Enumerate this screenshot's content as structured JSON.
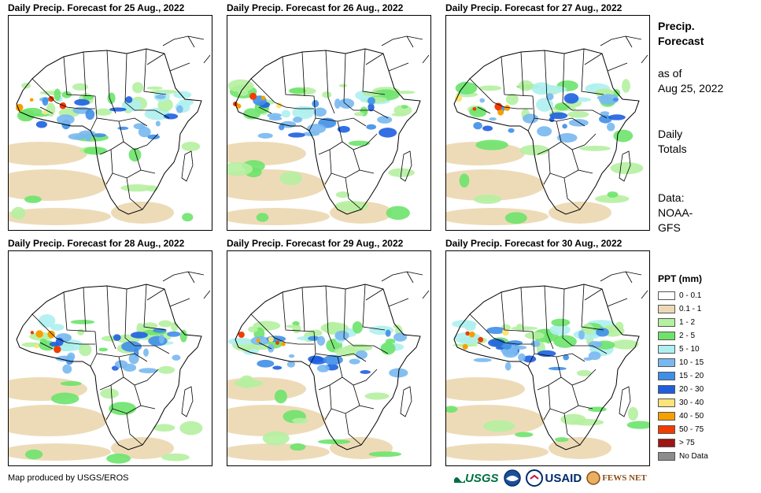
{
  "panels": [
    {
      "title": "Daily Precip. Forecast for 25 Aug., 2022"
    },
    {
      "title": "Daily Precip. Forecast for 26 Aug., 2022"
    },
    {
      "title": "Daily Precip. Forecast for 27 Aug., 2022"
    },
    {
      "title": "Daily Precip. Forecast for 28 Aug., 2022"
    },
    {
      "title": "Daily Precip. Forecast for 29 Aug., 2022"
    },
    {
      "title": "Daily Precip. Forecast for 30 Aug., 2022"
    }
  ],
  "sidebar": {
    "heading_line1": "Precip.",
    "heading_line2": "Forecast",
    "asof_line1": "as of",
    "asof_line2": "Aug 25, 2022",
    "daily_line1": "Daily",
    "daily_line2": "Totals",
    "data_line1": "Data:",
    "data_line2": "NOAA-",
    "data_line3": "GFS"
  },
  "legend": {
    "title": "PPT (mm)",
    "items": [
      {
        "label": "0 - 0.1",
        "color": "#ffffff"
      },
      {
        "label": "0.1 - 1",
        "color": "#ecd9b4"
      },
      {
        "label": "1 - 2",
        "color": "#b5f0a0"
      },
      {
        "label": "2 - 5",
        "color": "#6de36b"
      },
      {
        "label": "5 - 10",
        "color": "#aef0f0"
      },
      {
        "label": "10 - 15",
        "color": "#78b8f0"
      },
      {
        "label": "15 - 20",
        "color": "#3f8ee8"
      },
      {
        "label": "20 - 30",
        "color": "#1e5fe0"
      },
      {
        "label": "30 - 40",
        "color": "#fce478"
      },
      {
        "label": "40 - 50",
        "color": "#f5a000"
      },
      {
        "label": "50 - 75",
        "color": "#f03c00"
      },
      {
        "label": "> 75",
        "color": "#a01414"
      },
      {
        "label": "No Data",
        "color": "#8c8c8c"
      }
    ]
  },
  "credit": "Map produced by USGS/EROS",
  "logos": {
    "usgs": "USGS",
    "noaa": "NOAA",
    "usaid": "USAID",
    "fews": "FEWS NET"
  }
}
